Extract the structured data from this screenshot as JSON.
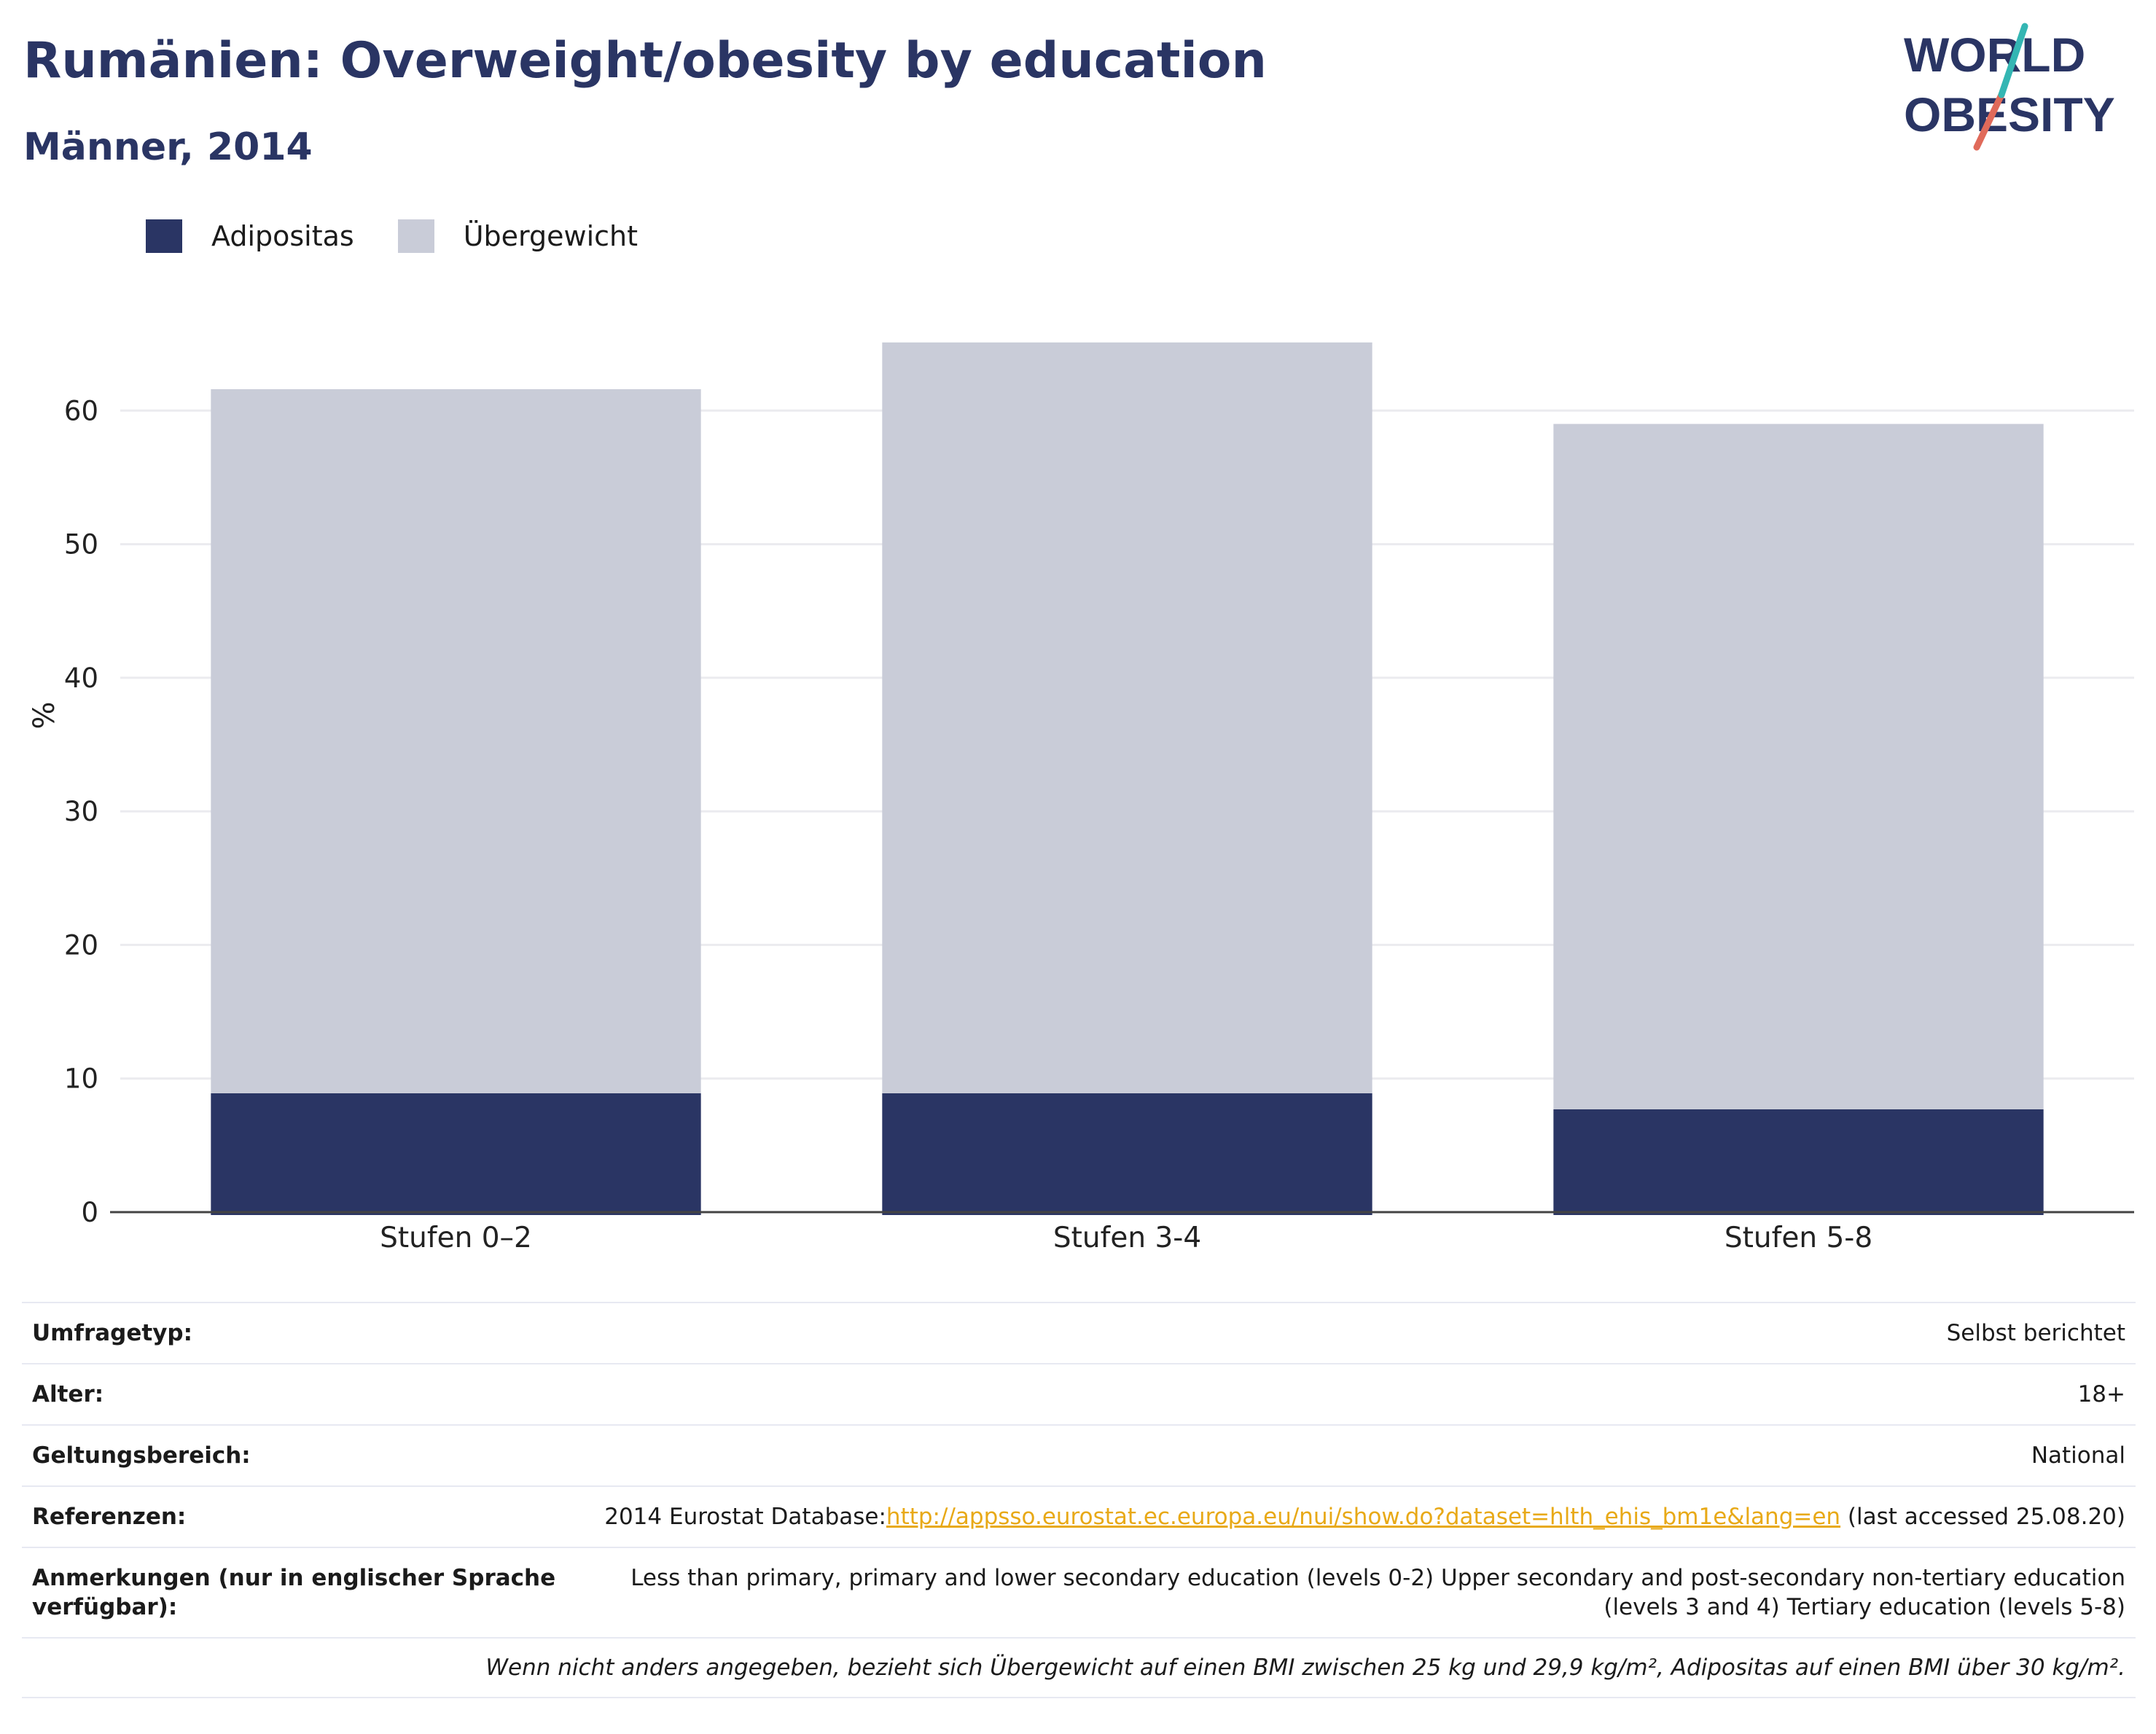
{
  "header": {
    "title": "Rumänien: Overweight/obesity by education",
    "subtitle": "Männer, 2014",
    "logo_text_line1": "WORLD",
    "logo_text_line2": "OBESITY"
  },
  "legend": [
    {
      "label": "Adipositas",
      "color": "#2a3564"
    },
    {
      "label": "Übergewicht",
      "color": "#c9ccd8"
    }
  ],
  "chart_data": {
    "type": "bar",
    "stacked": true,
    "categories": [
      "Stufen 0–2",
      "Stufen 3-4",
      "Stufen 5-8"
    ],
    "series": [
      {
        "name": "Adipositas",
        "color": "#2a3564",
        "values": [
          8.9,
          8.9,
          7.7
        ]
      },
      {
        "name": "Übergewicht",
        "color": "#c9ccd8",
        "values": [
          52.7,
          56.2,
          51.3
        ]
      }
    ],
    "totals": [
      61.6,
      65.1,
      59.0
    ],
    "ylabel": "%",
    "ylim": [
      0,
      70
    ],
    "yticks": [
      0,
      10,
      20,
      30,
      40,
      50,
      60
    ],
    "grid": true,
    "legend_position": "top-left"
  },
  "info": {
    "survey_type_label": "Umfragetyp:",
    "survey_type_value": "Selbst berichtet",
    "age_label": "Alter:",
    "age_value": "18+",
    "scope_label": "Geltungsbereich:",
    "scope_value": "National",
    "references_label": "Referenzen:",
    "references_prefix": "2014 Eurostat Database:",
    "references_link": "http://appsso.eurostat.ec.europa.eu/nui/show.do?dataset=hlth_ehis_bm1e&lang=en",
    "references_suffix": " (last accessed 25.08.20)",
    "notes_label": "Anmerkungen (nur in englischer Sprache verfügbar):",
    "notes_value": "Less than primary, primary and lower secondary education (levels 0-2) Upper secondary and post-secondary non-tertiary education (levels 3 and 4) Tertiary education (levels 5-8)",
    "footnote": "Wenn nicht anders angegeben, bezieht sich Übergewicht auf einen BMI zwischen 25 kg und 29,9 kg/m², Adipositas auf einen BMI über 30 kg/m²."
  }
}
